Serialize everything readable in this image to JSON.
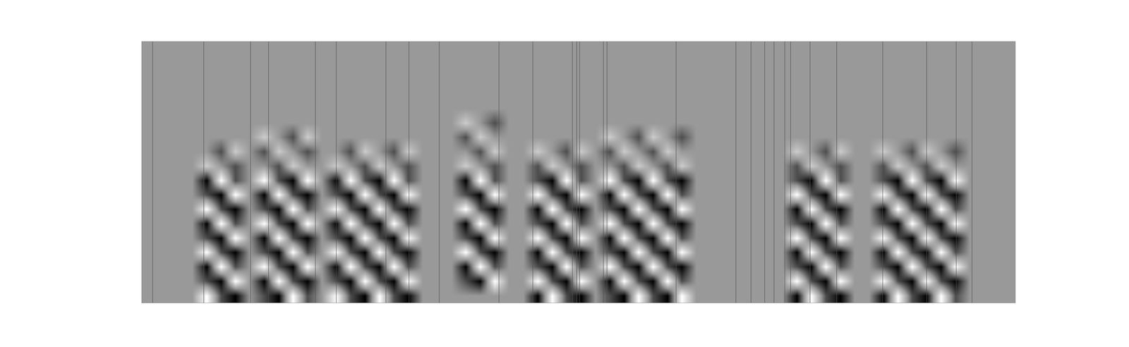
{
  "chart_data": {
    "type": "heatmap",
    "tick_labels": false,
    "xlim": [
      0,
      1213
    ],
    "ylim": [
      0,
      363
    ],
    "zlim": [
      -1,
      1
    ],
    "colors": [
      "#000000",
      "#999999",
      "#ffffff"
    ],
    "x": [
      10,
      30,
      50,
      70,
      90,
      110,
      130,
      150,
      170,
      190,
      210,
      230,
      250,
      270,
      290,
      310,
      330,
      350,
      370,
      390,
      410,
      430,
      450,
      470,
      490,
      510,
      530,
      550,
      570,
      590,
      610,
      630,
      650,
      670,
      690,
      710,
      730,
      750,
      770,
      790,
      810,
      830,
      850,
      870,
      890,
      910,
      930,
      950,
      970,
      990,
      1010,
      1030,
      1050,
      1070,
      1090,
      1110,
      1130,
      1150,
      1170,
      1190
    ],
    "y": [
      10,
      30,
      50,
      70,
      90,
      110,
      130,
      150,
      170,
      190,
      210,
      230,
      250,
      270,
      290,
      310,
      330,
      350
    ],
    "z": [
      [
        0,
        0,
        0,
        0,
        1,
        -0.5,
        -1,
        0,
        -0.5,
        -1,
        1,
        -0.5,
        0,
        1,
        -0.5,
        -1,
        1,
        -0.5,
        -1,
        0,
        0,
        0,
        0,
        0,
        0,
        0,
        0,
        -1,
        1,
        -0.5,
        -1,
        0,
        -0.5,
        -1,
        1,
        -0.5,
        -1,
        1,
        0,
        0,
        0,
        0,
        0,
        0,
        0,
        -1,
        1,
        -0.5,
        -1,
        0,
        0,
        -1,
        1,
        -0.5,
        -1,
        1,
        -0.5,
        0,
        0,
        0
      ],
      [
        0,
        0,
        0,
        0,
        -0.5,
        -1,
        1,
        0,
        -1,
        1,
        -0.5,
        -1,
        0,
        -0.5,
        -1,
        1,
        -0.5,
        -1,
        1,
        0,
        0,
        0,
        -0.5,
        -1,
        1,
        0,
        0,
        1,
        -0.5,
        -1,
        1,
        0,
        -1,
        1,
        -0.5,
        -1,
        1,
        -0.5,
        0,
        0,
        0,
        0,
        0,
        0,
        0,
        1,
        -0.5,
        -1,
        1,
        0,
        0,
        1,
        -0.5,
        -1,
        1,
        -0.5,
        -1,
        0,
        0,
        0
      ],
      [
        0,
        0,
        0,
        0,
        -1,
        1,
        -0.5,
        0,
        1,
        -0.5,
        -1,
        1,
        0,
        -1,
        1,
        -0.5,
        -1,
        1,
        -0.5,
        0,
        0,
        0,
        -1,
        1,
        -0.5,
        0,
        0,
        -0.5,
        -1,
        1,
        -0.5,
        0,
        1,
        -0.5,
        -1,
        1,
        -0.5,
        -1,
        0,
        0,
        0,
        0,
        0,
        0,
        0,
        -0.5,
        -1,
        1,
        -0.5,
        0,
        0,
        -0.5,
        -1,
        1,
        -0.5,
        -1,
        1,
        0,
        0,
        0
      ],
      [
        0,
        0,
        0,
        0,
        1,
        -0.5,
        -1,
        0,
        -0.5,
        -1,
        1,
        -0.5,
        0,
        1,
        -0.5,
        -1,
        1,
        -0.5,
        -1,
        0,
        0,
        0,
        1,
        -0.5,
        -1,
        0,
        0,
        -1,
        1,
        -0.5,
        -1,
        0,
        -0.5,
        -1,
        1,
        -0.5,
        -1,
        1,
        0,
        0,
        0,
        0,
        0,
        0,
        0,
        -1,
        1,
        -0.5,
        -1,
        0,
        0,
        -1,
        1,
        -0.5,
        -1,
        1,
        -0.5,
        0,
        0,
        0
      ],
      [
        0,
        0,
        0,
        0,
        -0.5,
        -1,
        1,
        0,
        -1,
        1,
        -0.5,
        -1,
        0,
        -0.5,
        -1,
        1,
        -0.5,
        -1,
        1,
        0,
        0,
        0,
        -0.5,
        -1,
        1,
        0,
        0,
        1,
        -0.5,
        -1,
        1,
        0,
        -1,
        1,
        -0.5,
        -1,
        1,
        -0.5,
        0,
        0,
        0,
        0,
        0,
        0,
        0,
        1,
        -0.5,
        -1,
        1,
        0,
        0,
        1,
        -0.5,
        -1,
        1,
        -0.5,
        -1,
        0,
        0,
        0
      ],
      [
        0,
        0,
        0,
        0,
        -1,
        1,
        -0.5,
        0,
        1,
        -0.5,
        -1,
        1,
        0,
        -1,
        1,
        -0.5,
        -1,
        1,
        -0.5,
        0,
        0,
        0,
        -1,
        1,
        -0.5,
        0,
        0,
        -0.5,
        -1,
        1,
        -0.5,
        0,
        1,
        -0.5,
        -1,
        1,
        -0.5,
        -1,
        0,
        0,
        0,
        0,
        0,
        0,
        0,
        -0.5,
        -1,
        1,
        -0.5,
        0,
        0,
        -0.5,
        -1,
        1,
        -0.5,
        -1,
        1,
        0,
        0,
        0
      ],
      [
        0,
        0,
        0,
        0,
        1,
        -0.5,
        -1,
        0,
        -0.5,
        -1,
        1,
        -0.5,
        0,
        1,
        -0.5,
        -1,
        1,
        -0.5,
        -1,
        0,
        0,
        0,
        1,
        -0.5,
        -1,
        0,
        0,
        -1,
        1,
        -0.5,
        -1,
        0,
        -0.5,
        -1,
        1,
        -0.5,
        -1,
        1,
        0,
        0,
        0,
        0,
        0,
        0,
        0,
        -1,
        1,
        -0.5,
        -1,
        0,
        0,
        -1,
        1,
        -0.5,
        -1,
        1,
        -0.5,
        0,
        0,
        0
      ],
      [
        0,
        0,
        0,
        0,
        -0.5,
        -1,
        1,
        0,
        -1,
        1,
        -0.5,
        -1,
        0,
        -0.5,
        -1,
        1,
        -0.5,
        -1,
        1,
        0,
        0,
        0,
        -0.5,
        -1,
        1,
        0,
        0,
        1,
        -0.5,
        -1,
        1,
        0,
        -1,
        1,
        -0.5,
        -1,
        1,
        -0.5,
        0,
        0,
        0,
        0,
        0,
        0,
        0,
        1,
        -0.5,
        -1,
        1,
        0,
        0,
        1,
        -0.5,
        -1,
        1,
        -0.5,
        -1,
        0,
        0,
        0
      ],
      [
        0,
        0,
        0,
        0,
        -1,
        1,
        -0.5,
        0,
        1,
        -0.5,
        -1,
        1,
        0,
        -1,
        1,
        -0.5,
        -1,
        1,
        -0.5,
        0,
        0,
        0,
        -1,
        1,
        -0.5,
        0,
        0,
        -0.5,
        -1,
        1,
        -0.5,
        0,
        1,
        -0.5,
        -1,
        1,
        -0.5,
        -1,
        0,
        0,
        0,
        0,
        0,
        0,
        0,
        -0.5,
        -1,
        1,
        -0.5,
        0,
        0,
        -0.5,
        -1,
        1,
        -0.5,
        -1,
        1,
        0,
        0,
        0
      ],
      [
        0,
        0,
        0,
        0,
        0.5,
        0,
        -0.5,
        0,
        0,
        -0.5,
        0.5,
        0,
        0,
        0.5,
        0,
        -0.5,
        0.5,
        0,
        -0.5,
        0,
        0,
        0,
        0.5,
        0,
        -0.5,
        0,
        0,
        -0.5,
        0.5,
        0,
        -0.5,
        0,
        0,
        -0.5,
        0.5,
        0,
        -0.5,
        0.5,
        0,
        0,
        0,
        0,
        0,
        0,
        0,
        -0.5,
        0.5,
        0,
        -0.5,
        0,
        0,
        -0.5,
        0.5,
        0,
        -0.5,
        0.5,
        0,
        0,
        0,
        0
      ],
      [
        0,
        0,
        0,
        0,
        0,
        -0.5,
        0.5,
        0,
        -0.5,
        0.5,
        0,
        -0.5,
        0,
        0,
        -0.5,
        0.5,
        0,
        -0.5,
        0.5,
        0,
        0,
        0,
        0,
        -0.5,
        0.5,
        0,
        0,
        0.5,
        0,
        -0.5,
        0.5,
        0,
        -0.5,
        0.5,
        0,
        -0.5,
        0.5,
        0,
        0,
        0,
        0,
        0,
        0,
        0,
        0,
        0.5,
        0,
        -0.5,
        0.5,
        0,
        0,
        0.5,
        0,
        -0.5,
        0.5,
        0,
        -0.5,
        0,
        0,
        0
      ],
      [
        0,
        0,
        0,
        0,
        0,
        0,
        0,
        0,
        0.5,
        0,
        -0.5,
        0.5,
        0,
        0,
        0,
        0,
        0,
        0,
        0,
        0,
        0,
        0,
        -0.5,
        0.5,
        0,
        0,
        0,
        0,
        0,
        0,
        0,
        0,
        0.5,
        0,
        -0.5,
        0.5,
        0,
        -0.5,
        0,
        0,
        0,
        0,
        0,
        0,
        0,
        0,
        0,
        0,
        0,
        0,
        0,
        0,
        0,
        0,
        0,
        0,
        0,
        0,
        0,
        0
      ],
      [
        0,
        0,
        0,
        0,
        0,
        0,
        0,
        0,
        0,
        0,
        0,
        0,
        0,
        0,
        0,
        0,
        0,
        0,
        0,
        0,
        0,
        0,
        0.5,
        0,
        -0.5,
        0,
        0,
        0,
        0,
        0,
        0,
        0,
        0,
        0,
        0,
        0,
        0,
        0,
        0,
        0,
        0,
        0,
        0,
        0,
        0,
        0,
        0,
        0,
        0,
        0,
        0,
        0,
        0,
        0,
        0,
        0,
        0,
        0,
        0,
        0
      ],
      [
        0,
        0,
        0,
        0,
        0,
        0,
        0,
        0,
        0,
        0,
        0,
        0,
        0,
        0,
        0,
        0,
        0,
        0,
        0,
        0,
        0,
        0,
        0,
        0,
        0,
        0,
        0,
        0,
        0,
        0,
        0,
        0,
        0,
        0,
        0,
        0,
        0,
        0,
        0,
        0,
        0,
        0,
        0,
        0,
        0,
        0,
        0,
        0,
        0,
        0,
        0,
        0,
        0,
        0,
        0,
        0,
        0,
        0,
        0,
        0
      ],
      [
        0,
        0,
        0,
        0,
        0,
        0,
        0,
        0,
        0,
        0,
        0,
        0,
        0,
        0,
        0,
        0,
        0,
        0,
        0,
        0,
        0,
        0,
        0,
        0,
        0,
        0,
        0,
        0,
        0,
        0,
        0,
        0,
        0,
        0,
        0,
        0,
        0,
        0,
        0,
        0,
        0,
        0,
        0,
        0,
        0,
        0,
        0,
        0,
        0,
        0,
        0,
        0,
        0,
        0,
        0,
        0,
        0,
        0,
        0,
        0
      ],
      [
        0,
        0,
        0,
        0,
        0,
        0,
        0,
        0,
        0,
        0,
        0,
        0,
        0,
        0,
        0,
        0,
        0,
        0,
        0,
        0,
        0,
        0,
        0,
        0,
        0,
        0,
        0,
        0,
        0,
        0,
        0,
        0,
        0,
        0,
        0,
        0,
        0,
        0,
        0,
        0,
        0,
        0,
        0,
        0,
        0,
        0,
        0,
        0,
        0,
        0,
        0,
        0,
        0,
        0,
        0,
        0,
        0,
        0,
        0,
        0
      ],
      [
        0,
        0,
        0,
        0,
        0,
        0,
        0,
        0,
        0,
        0,
        0,
        0,
        0,
        0,
        0,
        0,
        0,
        0,
        0,
        0,
        0,
        0,
        0,
        0,
        0,
        0,
        0,
        0,
        0,
        0,
        0,
        0,
        0,
        0,
        0,
        0,
        0,
        0,
        0,
        0,
        0,
        0,
        0,
        0,
        0,
        0,
        0,
        0,
        0,
        0,
        0,
        0,
        0,
        0,
        0,
        0,
        0,
        0,
        0,
        0
      ],
      [
        0,
        0,
        0,
        0,
        0,
        0,
        0,
        0,
        0,
        0,
        0,
        0,
        0,
        0,
        0,
        0,
        0,
        0,
        0,
        0,
        0,
        0,
        0,
        0,
        0,
        0,
        0,
        0,
        0,
        0,
        0,
        0,
        0,
        0,
        0,
        0,
        0,
        0,
        0,
        0,
        0,
        0,
        0,
        0,
        0,
        0,
        0,
        0,
        0,
        0,
        0,
        0,
        0,
        0,
        0,
        0,
        0,
        0,
        0,
        0
      ]
    ],
    "boundaries": [
      15,
      86,
      151,
      176,
      241,
      270,
      339,
      371,
      413,
      496,
      543,
      598,
      604,
      608,
      641,
      646,
      742,
      825,
      846,
      865,
      878,
      893,
      901,
      928,
      965,
      1029,
      1090,
      1131,
      1153
    ]
  }
}
